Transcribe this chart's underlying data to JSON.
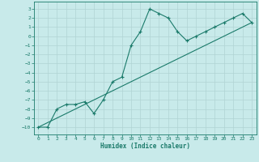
{
  "xlabel": "Humidex (Indice chaleur)",
  "background_color": "#c8eaea",
  "grid_color": "#b0d4d4",
  "line_color": "#1a7a6a",
  "xlim": [
    -0.5,
    23.5
  ],
  "ylim": [
    -10.8,
    3.8
  ],
  "xticks": [
    0,
    1,
    2,
    3,
    4,
    5,
    6,
    7,
    8,
    9,
    10,
    11,
    12,
    13,
    14,
    15,
    16,
    17,
    18,
    19,
    20,
    21,
    22,
    23
  ],
  "yticks": [
    3,
    2,
    1,
    0,
    -1,
    -2,
    -3,
    -4,
    -5,
    -6,
    -7,
    -8,
    -9,
    -10
  ],
  "line1_x": [
    0,
    1,
    2,
    3,
    4,
    5,
    6,
    7,
    8,
    9,
    10,
    11,
    12,
    13,
    14,
    15,
    16,
    17,
    18,
    19,
    20,
    21,
    22,
    23
  ],
  "line1_y": [
    -10,
    -10,
    -8,
    -7.5,
    -7.5,
    -7.2,
    -8.5,
    -7,
    -5,
    -4.5,
    -1,
    0.5,
    3,
    2.5,
    2,
    0.5,
    -0.5,
    0,
    0.5,
    1,
    1.5,
    2,
    2.5,
    1.5
  ],
  "line2_x": [
    0,
    23
  ],
  "line2_y": [
    -10,
    1.5
  ]
}
